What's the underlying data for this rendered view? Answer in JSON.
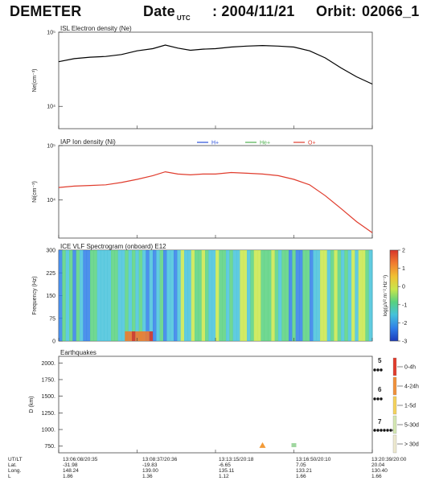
{
  "header": {
    "mission": "DEMETER",
    "date_label": "Date",
    "date_sub": "UTC",
    "date_value": ": 2004/11/21",
    "orbit_label": "Orbit:",
    "orbit_value": "02066_1"
  },
  "chart_data": [
    {
      "type": "line",
      "title": "ISL Electron density (Ne)",
      "ylabel": "Ne(cm⁻³)",
      "yscale": "log",
      "ylim": [
        5000,
        100000
      ],
      "yticks": [
        "10⁵",
        "10⁴"
      ],
      "series": [
        {
          "name": "",
          "color": "#000000",
          "x": [
            0,
            0.05,
            0.1,
            0.15,
            0.2,
            0.25,
            0.3,
            0.34,
            0.38,
            0.42,
            0.46,
            0.5,
            0.55,
            0.6,
            0.65,
            0.7,
            0.75,
            0.8,
            0.85,
            0.9,
            0.95,
            1.0
          ],
          "y": [
            40000,
            44000,
            46000,
            47000,
            50000,
            56000,
            60000,
            67000,
            61000,
            57000,
            59000,
            60000,
            63000,
            65000,
            66000,
            65000,
            63000,
            56000,
            45000,
            33000,
            25000,
            20000
          ]
        }
      ]
    },
    {
      "type": "line",
      "title": "IAP Ion density (Ni)",
      "ylabel": "Ni(cm⁻³)",
      "yscale": "log",
      "ylim": [
        2000,
        100000
      ],
      "yticks": [
        "10⁵",
        "10⁴"
      ],
      "legend": [
        "H+",
        "He+",
        "O+"
      ],
      "legend_colors": [
        "#2a4fd8",
        "#4fb04f",
        "#e03c2d"
      ],
      "series": [
        {
          "name": "O+",
          "color": "#e03c2d",
          "x": [
            0,
            0.05,
            0.1,
            0.15,
            0.2,
            0.25,
            0.3,
            0.34,
            0.38,
            0.42,
            0.46,
            0.5,
            0.55,
            0.6,
            0.65,
            0.7,
            0.75,
            0.8,
            0.85,
            0.9,
            0.95,
            1.0
          ],
          "y": [
            17000,
            18000,
            18500,
            19000,
            21000,
            24000,
            28000,
            33000,
            30000,
            29000,
            30000,
            30000,
            32000,
            31000,
            30000,
            28000,
            24000,
            19000,
            12000,
            7000,
            4000,
            2500
          ]
        }
      ]
    },
    {
      "type": "heatmap",
      "title": "ICE VLF Spectrogram (onboard) E12",
      "ylabel": "Frequency (Hz)",
      "yticks": [
        "300",
        "225",
        "150",
        "75",
        "0"
      ],
      "ylim": [
        0,
        300
      ],
      "colorbar_label": "log(µV².m⁻².Hz⁻¹)",
      "colorbar_ticks": [
        "2",
        "1",
        "0",
        "-1",
        "-2",
        "-3"
      ],
      "clim": [
        -3,
        2
      ]
    },
    {
      "type": "scatter",
      "title": "Earthquakes",
      "ylabel": "D (km)",
      "yticks": [
        "2000.",
        "1750.",
        "1500.",
        "1250.",
        "1000.",
        "750."
      ],
      "ylim": [
        650,
        2100
      ],
      "magnitude_labels": [
        "5",
        "6",
        "7"
      ],
      "time_legend": [
        "0-4h",
        "4-24h",
        "1-5d",
        "5-30d",
        "> 30d"
      ],
      "time_legend_colors": [
        "#e03c2d",
        "#f0903a",
        "#f4d25b",
        "#d4e7b2",
        "#ede8cf"
      ],
      "points": [
        {
          "x": 0.65,
          "y": 760,
          "marker": "triangle",
          "color": "#f39b38"
        },
        {
          "x": 0.75,
          "y": 765,
          "marker": "square",
          "color": "#8fd08f"
        }
      ]
    }
  ],
  "footer": {
    "labels": [
      "UT/LT",
      "Lat.",
      "Long.",
      "L"
    ],
    "columns": [
      [
        "13:06:08/20:35",
        "-31.98",
        "148.24",
        "1.86"
      ],
      [
        "13:08:37/20:36",
        "-19.83",
        "139.00",
        "1.36"
      ],
      [
        "13:13:15/20:18",
        "-6.65",
        "135.11",
        "1.12"
      ],
      [
        "13:16:50/20:10",
        "7.05",
        "133.21",
        "1.66"
      ],
      [
        "13:20:39/20:00",
        "20.04",
        "130.40",
        "1.66"
      ]
    ]
  }
}
